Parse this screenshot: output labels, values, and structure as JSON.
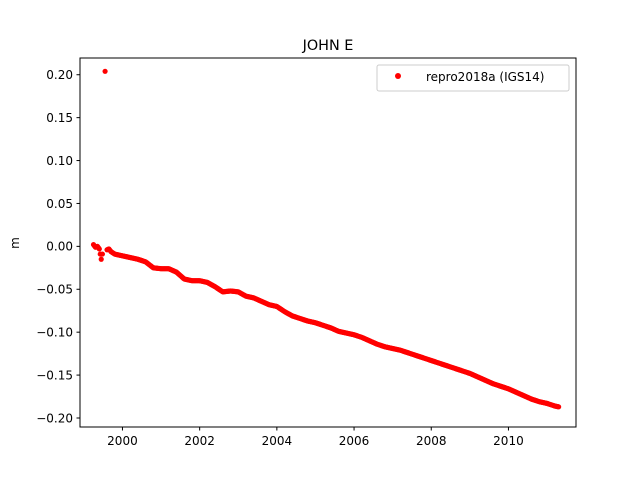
{
  "chart_data": {
    "type": "scatter",
    "title": "JOHN E",
    "xlabel": "",
    "ylabel": "m",
    "xlim": [
      1998.9,
      2011.75
    ],
    "ylim": [
      -0.2105,
      0.2195
    ],
    "x_ticks": [
      2000,
      2002,
      2004,
      2006,
      2008,
      2010
    ],
    "x_tick_labels": [
      "2000",
      "2002",
      "2004",
      "2006",
      "2008",
      "2010"
    ],
    "y_ticks": [
      0.2,
      0.15,
      0.1,
      0.05,
      0.0,
      -0.05,
      -0.1,
      -0.15,
      -0.2
    ],
    "y_tick_labels": [
      "0.20",
      "0.15",
      "0.10",
      "0.05",
      "0.00",
      "−0.05",
      "−0.10",
      "−0.15",
      "−0.20"
    ],
    "grid": false,
    "legend_position": "top-right",
    "series": [
      {
        "name": "repro2018a (IGS14)",
        "color": "#ff0000",
        "marker": "circle",
        "points": [
          [
            1999.25,
            0.002
          ],
          [
            1999.3,
            -0.001
          ],
          [
            1999.35,
            0.0
          ],
          [
            1999.4,
            -0.003
          ],
          [
            1999.45,
            -0.015
          ],
          [
            1999.48,
            -0.009
          ],
          [
            1999.55,
            0.204
          ],
          [
            1999.6,
            -0.004
          ],
          [
            1999.65,
            -0.003
          ],
          [
            1999.7,
            -0.006
          ],
          [
            1999.8,
            -0.009
          ],
          [
            1999.9,
            -0.01
          ],
          [
            2000.0,
            -0.011
          ],
          [
            2000.2,
            -0.013
          ],
          [
            2000.4,
            -0.015
          ],
          [
            2000.6,
            -0.018
          ],
          [
            2000.8,
            -0.025
          ],
          [
            2001.0,
            -0.026
          ],
          [
            2001.2,
            -0.026
          ],
          [
            2001.4,
            -0.03
          ],
          [
            2001.6,
            -0.038
          ],
          [
            2001.8,
            -0.04
          ],
          [
            2002.0,
            -0.04
          ],
          [
            2002.2,
            -0.042
          ],
          [
            2002.4,
            -0.047
          ],
          [
            2002.6,
            -0.053
          ],
          [
            2002.8,
            -0.052
          ],
          [
            2003.0,
            -0.053
          ],
          [
            2003.2,
            -0.058
          ],
          [
            2003.4,
            -0.06
          ],
          [
            2003.6,
            -0.064
          ],
          [
            2003.8,
            -0.068
          ],
          [
            2004.0,
            -0.07
          ],
          [
            2004.2,
            -0.076
          ],
          [
            2004.4,
            -0.081
          ],
          [
            2004.6,
            -0.084
          ],
          [
            2004.8,
            -0.087
          ],
          [
            2005.0,
            -0.089
          ],
          [
            2005.2,
            -0.092
          ],
          [
            2005.4,
            -0.095
          ],
          [
            2005.6,
            -0.099
          ],
          [
            2005.8,
            -0.101
          ],
          [
            2006.0,
            -0.103
          ],
          [
            2006.2,
            -0.106
          ],
          [
            2006.4,
            -0.11
          ],
          [
            2006.6,
            -0.114
          ],
          [
            2006.8,
            -0.117
          ],
          [
            2007.0,
            -0.119
          ],
          [
            2007.2,
            -0.121
          ],
          [
            2007.4,
            -0.124
          ],
          [
            2007.6,
            -0.127
          ],
          [
            2007.8,
            -0.13
          ],
          [
            2008.0,
            -0.133
          ],
          [
            2008.2,
            -0.136
          ],
          [
            2008.4,
            -0.139
          ],
          [
            2008.6,
            -0.142
          ],
          [
            2008.8,
            -0.145
          ],
          [
            2009.0,
            -0.148
          ],
          [
            2009.2,
            -0.152
          ],
          [
            2009.4,
            -0.156
          ],
          [
            2009.6,
            -0.16
          ],
          [
            2009.8,
            -0.163
          ],
          [
            2010.0,
            -0.166
          ],
          [
            2010.2,
            -0.17
          ],
          [
            2010.4,
            -0.174
          ],
          [
            2010.6,
            -0.178
          ],
          [
            2010.8,
            -0.181
          ],
          [
            2011.0,
            -0.183
          ],
          [
            2011.2,
            -0.186
          ],
          [
            2011.3,
            -0.187
          ]
        ]
      }
    ]
  }
}
